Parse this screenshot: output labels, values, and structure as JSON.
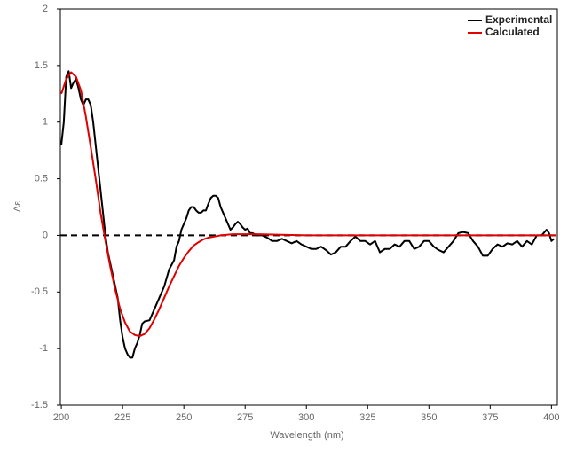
{
  "chart_data": {
    "type": "line",
    "xlabel": "Wavelength (nm)",
    "ylabel": "Δε",
    "xlim": [
      199.6,
      402.4
    ],
    "ylim": [
      -1.5,
      2
    ],
    "xticks": [
      200,
      225,
      250,
      275,
      300,
      325,
      350,
      375,
      400
    ],
    "yticks": [
      -1.5,
      -1,
      -0.5,
      0,
      0.5,
      1,
      1.5,
      2
    ],
    "grid": false,
    "legend": "upper right",
    "hline": 0,
    "series": [
      {
        "name": "Experimental",
        "color": "#000000",
        "x": [
          200,
          201,
          202,
          203,
          204,
          205,
          206,
          207,
          208,
          209,
          210,
          211,
          212,
          213,
          214,
          215,
          216,
          217,
          218,
          219,
          220,
          221,
          222,
          223,
          224,
          225,
          226,
          227,
          228,
          229,
          230,
          231,
          232,
          233,
          234,
          236,
          237,
          238,
          240,
          242,
          244,
          246,
          247,
          248,
          249,
          250,
          251,
          252,
          253,
          254,
          255,
          256,
          257,
          258,
          259,
          260,
          261,
          262,
          263,
          264,
          265,
          266,
          267,
          268,
          269,
          270,
          271,
          272,
          273,
          274,
          275,
          276,
          277,
          278,
          280,
          282,
          284,
          286,
          288,
          290,
          292,
          294,
          296,
          298,
          300,
          302,
          304,
          306,
          308,
          310,
          312,
          314,
          316,
          318,
          320,
          322,
          324,
          326,
          328,
          330,
          332,
          334,
          336,
          338,
          340,
          342,
          344,
          346,
          348,
          350,
          352,
          354,
          356,
          358,
          360,
          362,
          364,
          366,
          368,
          370,
          372,
          374,
          376,
          378,
          380,
          382,
          384,
          386,
          388,
          390,
          392,
          394,
          396,
          398,
          399,
          400,
          401
        ],
        "values": [
          0.8,
          1.0,
          1.4,
          1.45,
          1.3,
          1.35,
          1.38,
          1.3,
          1.2,
          1.15,
          1.2,
          1.2,
          1.15,
          1.0,
          0.8,
          0.6,
          0.4,
          0.2,
          0.0,
          -0.15,
          -0.25,
          -0.35,
          -0.45,
          -0.55,
          -0.75,
          -0.9,
          -1.0,
          -1.05,
          -1.08,
          -1.08,
          -1.0,
          -0.95,
          -0.88,
          -0.78,
          -0.76,
          -0.75,
          -0.7,
          -0.65,
          -0.55,
          -0.45,
          -0.3,
          -0.22,
          -0.1,
          -0.05,
          0.05,
          0.1,
          0.15,
          0.22,
          0.25,
          0.25,
          0.22,
          0.2,
          0.2,
          0.22,
          0.22,
          0.28,
          0.33,
          0.35,
          0.35,
          0.33,
          0.25,
          0.2,
          0.15,
          0.1,
          0.05,
          0.07,
          0.1,
          0.12,
          0.1,
          0.07,
          0.05,
          0.06,
          0.02,
          0.02,
          0.0,
          0.0,
          -0.02,
          -0.05,
          -0.05,
          -0.03,
          -0.05,
          -0.07,
          -0.05,
          -0.08,
          -0.1,
          -0.12,
          -0.12,
          -0.1,
          -0.13,
          -0.17,
          -0.15,
          -0.1,
          -0.1,
          -0.05,
          -0.01,
          -0.05,
          -0.05,
          -0.08,
          -0.05,
          -0.15,
          -0.12,
          -0.12,
          -0.08,
          -0.1,
          -0.05,
          -0.05,
          -0.12,
          -0.1,
          -0.05,
          -0.05,
          -0.1,
          -0.13,
          -0.15,
          -0.1,
          -0.05,
          0.02,
          0.03,
          0.02,
          -0.05,
          -0.1,
          -0.18,
          -0.18,
          -0.12,
          -0.08,
          -0.1,
          -0.07,
          -0.08,
          -0.05,
          -0.1,
          -0.05,
          -0.08,
          0.0,
          0.0,
          0.05,
          0.02,
          -0.05,
          -0.03
        ]
      },
      {
        "name": "Calculated",
        "color": "#e00000",
        "x": [
          200,
          202,
          204,
          206,
          208,
          210,
          212,
          214,
          216,
          218,
          220,
          222,
          224,
          226,
          228,
          230,
          232,
          234,
          236,
          238,
          240,
          242,
          244,
          246,
          248,
          250,
          252,
          254,
          256,
          258,
          260,
          265,
          270,
          275,
          280,
          290,
          300,
          350,
          402
        ],
        "values": [
          1.25,
          1.38,
          1.44,
          1.4,
          1.28,
          1.05,
          0.78,
          0.5,
          0.2,
          -0.05,
          -0.28,
          -0.48,
          -0.65,
          -0.77,
          -0.85,
          -0.88,
          -0.89,
          -0.87,
          -0.82,
          -0.74,
          -0.65,
          -0.55,
          -0.45,
          -0.36,
          -0.27,
          -0.2,
          -0.14,
          -0.09,
          -0.06,
          -0.035,
          -0.02,
          0.0,
          0.01,
          0.01,
          0.01,
          0.005,
          0,
          0,
          0
        ]
      }
    ]
  }
}
